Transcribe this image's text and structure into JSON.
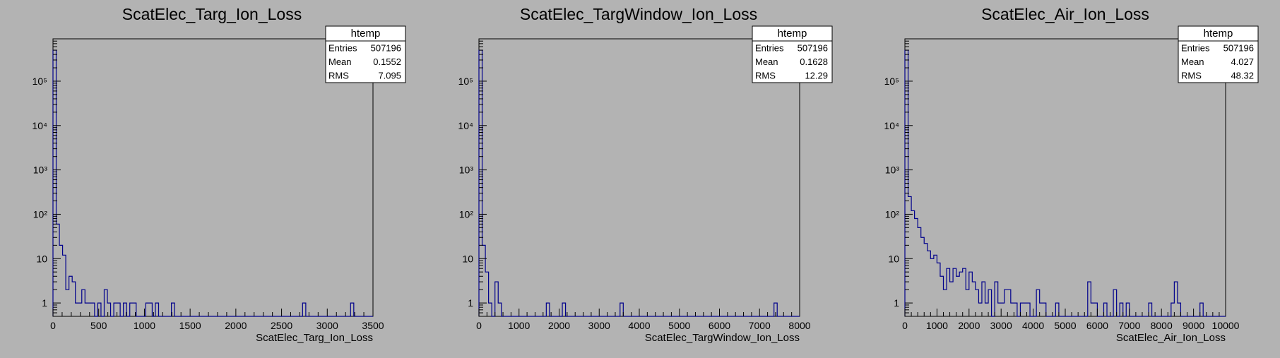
{
  "chart_data": [
    {
      "type": "histogram",
      "title": "ScatElec_Targ_Ion_Loss",
      "xlabel": "ScatElec_Targ_Ion_Loss",
      "ylabel": "",
      "xlim": [
        0,
        3500
      ],
      "ylim": [
        0.5,
        900000
      ],
      "y_scale": "log",
      "x_ticks": [
        0,
        500,
        1000,
        1500,
        2000,
        2500,
        3000,
        3500
      ],
      "y_ticks": [
        "1",
        "10",
        "10²",
        "10³",
        "10⁴",
        "10⁵"
      ],
      "bin_width": 35,
      "counts": [
        500000,
        60,
        20,
        12,
        2,
        4,
        3,
        1,
        1,
        2,
        1,
        1,
        1,
        0,
        1,
        0,
        2,
        1,
        0,
        1,
        1,
        0,
        1,
        0,
        1,
        1,
        0,
        0,
        0,
        1,
        1,
        0,
        1,
        0,
        0,
        0,
        0,
        1,
        0,
        0,
        0,
        0,
        0,
        0,
        0,
        0,
        0,
        0,
        0,
        0,
        0,
        0,
        0,
        0,
        0,
        0,
        0,
        0,
        0,
        0,
        0,
        0,
        0,
        0,
        0,
        0,
        0,
        0,
        0,
        0,
        0,
        0,
        0,
        0,
        0,
        0,
        0,
        0,
        1,
        0,
        0,
        0,
        0,
        0,
        0,
        0,
        0,
        0,
        0,
        0,
        0,
        0,
        0,
        1,
        0,
        0,
        0,
        0,
        0,
        0
      ],
      "legend": {
        "title": "htemp",
        "position": "top-right",
        "entries": [
          [
            "Entries",
            "507196"
          ],
          [
            "Mean",
            "0.1552"
          ],
          [
            "RMS",
            "7.095"
          ]
        ]
      },
      "grid": false,
      "line_color": "#00008b"
    },
    {
      "type": "histogram",
      "title": "ScatElec_TargWindow_Ion_Loss",
      "xlabel": "ScatElec_TargWindow_Ion_Loss",
      "ylabel": "",
      "xlim": [
        0,
        8000
      ],
      "ylim": [
        0.5,
        900000
      ],
      "y_scale": "log",
      "x_ticks": [
        0,
        1000,
        2000,
        3000,
        4000,
        5000,
        6000,
        7000,
        8000
      ],
      "y_ticks": [
        "1",
        "10",
        "10²",
        "10³",
        "10⁴",
        "10⁵"
      ],
      "bin_width": 80,
      "counts": [
        500000,
        20,
        5,
        1,
        0,
        3,
        1,
        0,
        0,
        0,
        0,
        0,
        0,
        0,
        0,
        0,
        0,
        0,
        0,
        0,
        0,
        1,
        0,
        0,
        0,
        0,
        1,
        0,
        0,
        0,
        0,
        0,
        0,
        0,
        0,
        0,
        0,
        0,
        0,
        0,
        0,
        0,
        0,
        0,
        1,
        0,
        0,
        0,
        0,
        0,
        0,
        0,
        0,
        0,
        0,
        0,
        0,
        0,
        0,
        0,
        0,
        0,
        0,
        0,
        0,
        0,
        0,
        0,
        0,
        0,
        0,
        0,
        0,
        0,
        0,
        0,
        0,
        0,
        0,
        0,
        0,
        0,
        0,
        0,
        0,
        0,
        0,
        0,
        0,
        0,
        0,
        0,
        1,
        0,
        0,
        0,
        0,
        0,
        0,
        0
      ],
      "legend": {
        "title": "htemp",
        "position": "top-right",
        "entries": [
          [
            "Entries",
            "507196"
          ],
          [
            "Mean",
            "0.1628"
          ],
          [
            "RMS",
            "12.29"
          ]
        ]
      },
      "grid": false,
      "line_color": "#00008b"
    },
    {
      "type": "histogram",
      "title": "ScatElec_Air_Ion_Loss",
      "xlabel": "ScatElec_Air_Ion_Loss",
      "ylabel": "",
      "xlim": [
        0,
        10000
      ],
      "ylim": [
        0.5,
        900000
      ],
      "y_scale": "log",
      "x_ticks": [
        0,
        1000,
        2000,
        3000,
        4000,
        5000,
        6000,
        7000,
        8000,
        9000,
        10000
      ],
      "y_ticks": [
        "1",
        "10",
        "10²",
        "10³",
        "10⁴",
        "10⁵"
      ],
      "bin_width": 100,
      "counts": [
        500000,
        250,
        120,
        80,
        50,
        30,
        22,
        15,
        10,
        12,
        8,
        4,
        2,
        6,
        3,
        6,
        4,
        5,
        6,
        2,
        5,
        3,
        2,
        1,
        3,
        1,
        2,
        0,
        3,
        1,
        1,
        2,
        2,
        1,
        1,
        0,
        1,
        1,
        1,
        0,
        0,
        2,
        1,
        1,
        0,
        0,
        0,
        1,
        0,
        0,
        0,
        0,
        0,
        0,
        0,
        0,
        0,
        3,
        1,
        1,
        0,
        0,
        1,
        0,
        0,
        2,
        0,
        1,
        0,
        1,
        0,
        0,
        0,
        0,
        0,
        0,
        1,
        0,
        0,
        0,
        0,
        0,
        0,
        1,
        3,
        1,
        0,
        0,
        0,
        0,
        0,
        0,
        1,
        0,
        0,
        0,
        0,
        0,
        0,
        0
      ],
      "legend": {
        "title": "htemp",
        "position": "top-right",
        "entries": [
          [
            "Entries",
            "507196"
          ],
          [
            "Mean",
            "4.027"
          ],
          [
            "RMS",
            "48.32"
          ]
        ]
      },
      "grid": false,
      "line_color": "#00008b"
    }
  ]
}
